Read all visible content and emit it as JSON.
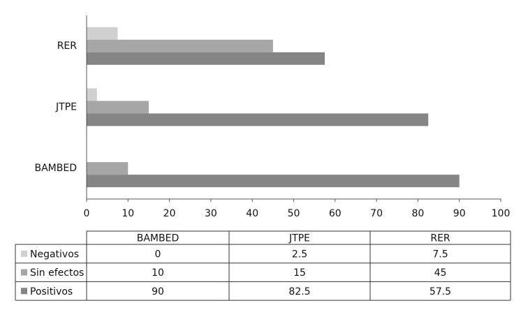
{
  "chart_data": {
    "type": "bar",
    "orientation": "horizontal",
    "categories": [
      "BAMBED",
      "JTPE",
      "RER"
    ],
    "series": [
      {
        "name": "Negativos",
        "color": "#d0d0d0",
        "values": [
          0,
          2.5,
          7.5
        ]
      },
      {
        "name": "Sin efectos",
        "color": "#a6a6a6",
        "values": [
          10,
          15,
          45
        ]
      },
      {
        "name": "Positivos",
        "color": "#858585",
        "values": [
          90,
          82.5,
          57.5
        ]
      }
    ],
    "xlim": [
      0,
      100
    ],
    "xticks": [
      0,
      10,
      20,
      30,
      40,
      50,
      60,
      70,
      80,
      90,
      100
    ],
    "grid": false,
    "data_table": true
  }
}
